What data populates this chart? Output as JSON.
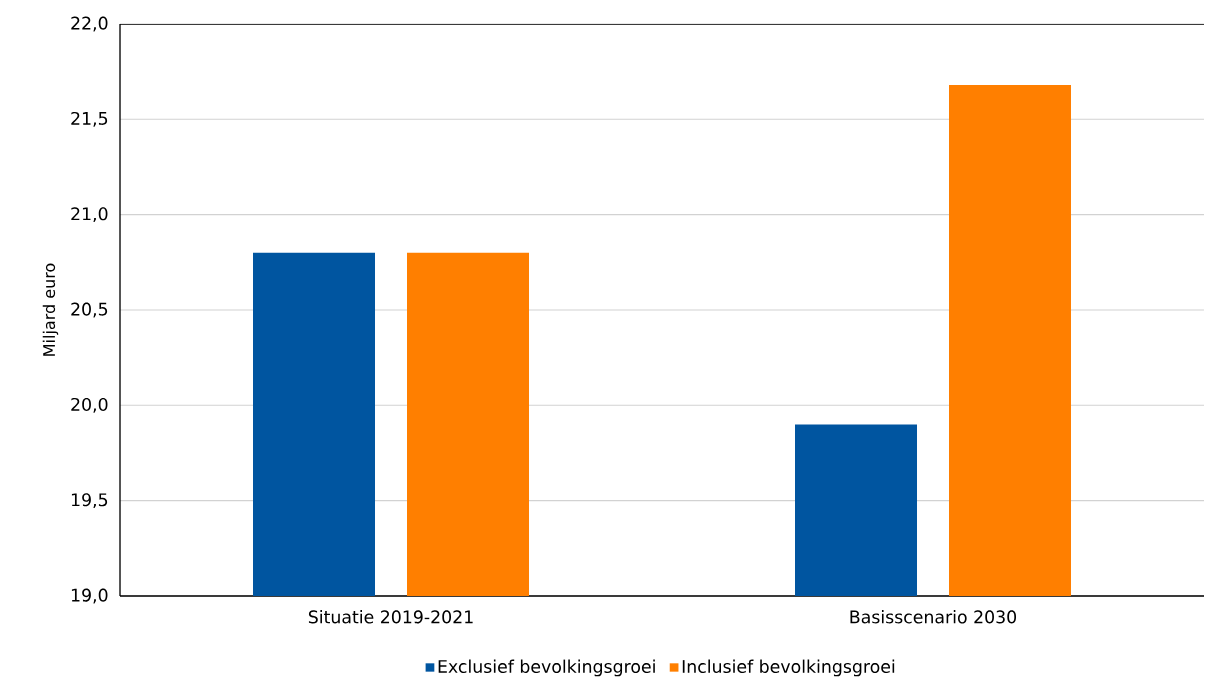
{
  "chart_data": {
    "type": "bar",
    "ylabel": "Miljard euro",
    "categories": [
      "Situatie 2019-2021",
      "Basisscenario 2030"
    ],
    "series": [
      {
        "name": "Exclusief bevolkingsgroei",
        "color": "#0055a0",
        "values": [
          20.8,
          19.9
        ]
      },
      {
        "name": "Inclusief bevolkingsgroei",
        "color": "#ff7f00",
        "values": [
          20.8,
          21.68
        ]
      }
    ],
    "ylim": [
      19,
      22
    ],
    "yticks": [
      {
        "value": 19,
        "label": "19,0"
      },
      {
        "value": 19.5,
        "label": "19,5"
      },
      {
        "value": 20,
        "label": "20,0"
      },
      {
        "value": 20.5,
        "label": "20,5"
      },
      {
        "value": 21,
        "label": "21,0"
      },
      {
        "value": 21.5,
        "label": "21,5"
      },
      {
        "value": 22,
        "label": "22,0"
      }
    ],
    "grid": "y",
    "legend": "bottom"
  }
}
